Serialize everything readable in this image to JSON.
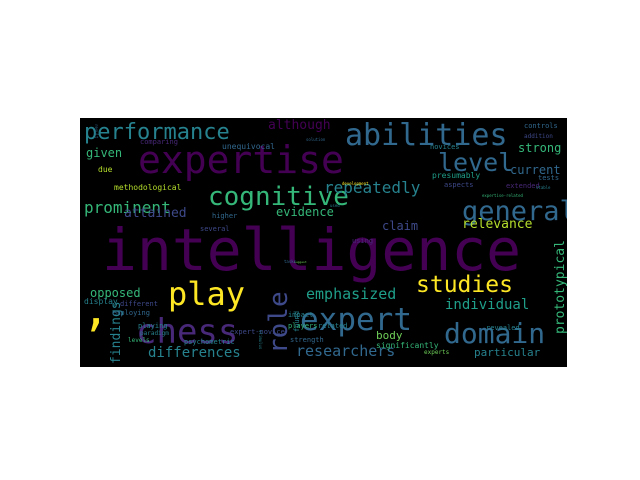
{
  "palette": {
    "dark_purple": "#440154",
    "purple": "#482878",
    "indigo": "#3e4989",
    "blue": "#31688e",
    "teal_blue": "#26828e",
    "teal": "#1f9e89",
    "green": "#35b779",
    "light_green": "#6ece58",
    "lime": "#b5de2b",
    "yellow": "#fde725"
  },
  "words": [
    "intelligence",
    "expertise",
    "abilities",
    "performance",
    "cognitive",
    "general",
    "level",
    "chess",
    "expert",
    "domain",
    "play",
    "role",
    "studies",
    ",",
    "prominent",
    "repeatedly",
    "emphasized",
    "individual",
    "researchers",
    "differences",
    "findings",
    "prototypical",
    "although",
    "strong",
    "current",
    "relevance",
    "attained",
    "evidence",
    "claim",
    "body",
    "opposed",
    "given",
    "particular",
    "unequivocal",
    "comparing",
    "presumably",
    "novices",
    "controls",
    "addition",
    "tests",
    "extended",
    "due",
    "methodological",
    "several",
    "higher",
    "employing",
    "different",
    "display",
    "playing",
    "paradigm",
    "levels",
    "psychometric",
    "expert-novice",
    "players",
    "related",
    "found",
    "impact",
    "using",
    "significantly",
    "strength",
    "revealed",
    "experts",
    "aspects",
    "solution",
    "development",
    "expertise-related",
    "suggest",
    "stable",
    "tasks",
    "result",
    "stimulus",
    "used"
  ]
}
